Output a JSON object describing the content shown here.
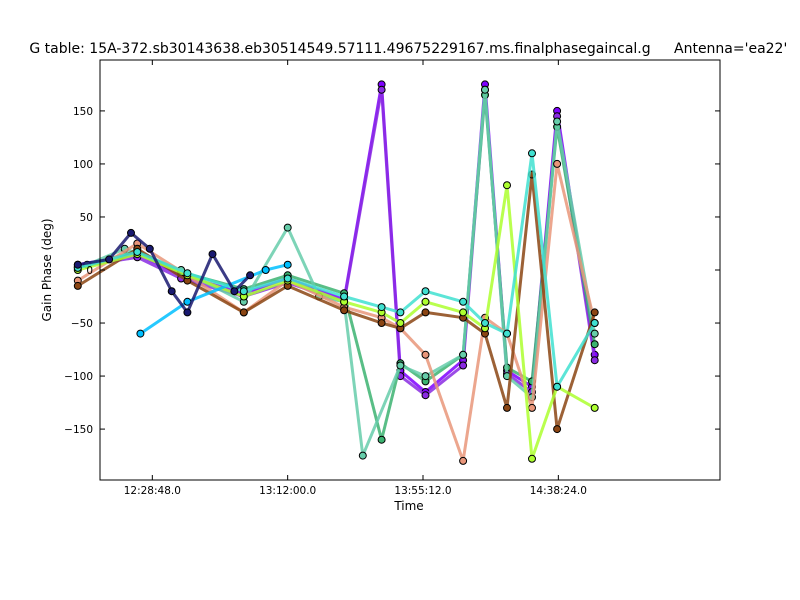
{
  "chart_data": {
    "type": "line",
    "title": "G table: 15A-372.sb30143638.eb30514549.57111.49675229167.ms.finalphasegaincal.g",
    "antenna_label": "Antenna='ea22'",
    "xlabel": "Time",
    "ylabel": "Gain Phase (deg)",
    "ylim": [
      -198,
      198
    ],
    "xlim_seconds": [
      43926,
      55800
    ],
    "x_ticks": [
      "12:28:48.0",
      "13:12:00.0",
      "13:55:12.0",
      "14:38:24.0"
    ],
    "y_ticks": [
      "150",
      "100",
      "50",
      "0",
      "−50",
      "−100",
      "−150"
    ],
    "grid": false,
    "legend": "none",
    "marker_edge_color": "#000000",
    "series": [
      {
        "color": "#7f00ff",
        "x": [
          "12:05:00",
          "12:24:00",
          "12:38:00",
          "12:58:00",
          "13:12:00",
          "13:30:00",
          "13:42:00",
          "13:48:00",
          "13:56:00",
          "14:08:00",
          "14:15:00",
          "14:22:00",
          "14:30:00",
          "14:38:00",
          "14:50:00"
        ],
        "y": [
          5,
          15,
          -5,
          -22,
          -8,
          -28,
          175,
          -95,
          -115,
          -85,
          175,
          -95,
          -110,
          150,
          -80
        ]
      },
      {
        "color": "#8a2be2",
        "x": [
          "12:05:00",
          "12:24:00",
          "12:38:00",
          "12:58:00",
          "13:12:00",
          "13:30:00",
          "13:42:00",
          "13:48:00",
          "13:56:00",
          "14:08:00",
          "14:15:00",
          "14:22:00",
          "14:30:00",
          "14:38:00",
          "14:50:00"
        ],
        "y": [
          3,
          12,
          -8,
          -25,
          -12,
          -30,
          170,
          -100,
          -118,
          -90,
          170,
          -98,
          -115,
          145,
          -85
        ]
      },
      {
        "color": "#3cb371",
        "x": [
          "12:05:00",
          "12:24:00",
          "12:38:00",
          "12:58:00",
          "13:12:00",
          "13:30:00",
          "13:42:00",
          "13:48:00",
          "13:56:00",
          "14:08:00",
          "14:15:00",
          "14:22:00",
          "14:30:00",
          "14:38:00",
          "14:50:00"
        ],
        "y": [
          2,
          18,
          -2,
          -18,
          -5,
          -22,
          -160,
          -88,
          -105,
          -80,
          165,
          -92,
          -105,
          135,
          -70
        ]
      },
      {
        "color": "#66cdaa",
        "x": [
          "12:08:00",
          "12:20:00",
          "12:38:00",
          "12:58:00",
          "13:12:00",
          "13:22:00",
          "13:30:00",
          "13:36:00",
          "13:48:00",
          "13:56:00",
          "14:08:00",
          "14:15:00",
          "14:22:00",
          "14:30:00",
          "14:38:00",
          "14:50:00"
        ],
        "y": [
          5,
          20,
          0,
          -30,
          40,
          -25,
          -30,
          -175,
          -90,
          -100,
          -80,
          170,
          -100,
          -120,
          140,
          -60
        ]
      },
      {
        "color": "#e9967a",
        "x": [
          "12:05:00",
          "12:24:00",
          "12:40:00",
          "12:58:00",
          "13:12:00",
          "13:30:00",
          "13:42:00",
          "13:48:00",
          "13:56:00",
          "14:08:00",
          "14:15:00",
          "14:22:00",
          "14:30:00",
          "14:38:00",
          "14:50:00"
        ],
        "y": [
          -10,
          25,
          -5,
          -40,
          -10,
          -35,
          -45,
          -55,
          -80,
          -180,
          -45,
          -60,
          -130,
          100,
          -50
        ]
      },
      {
        "color": "#8b4513",
        "x": [
          "12:05:00",
          "12:24:00",
          "12:40:00",
          "12:58:00",
          "13:12:00",
          "13:30:00",
          "13:42:00",
          "13:48:00",
          "13:56:00",
          "14:08:00",
          "14:15:00",
          "14:22:00",
          "14:30:00",
          "14:38:00",
          "14:50:00"
        ],
        "y": [
          -15,
          20,
          -10,
          -40,
          -15,
          -38,
          -50,
          -55,
          -40,
          -45,
          -60,
          -130,
          90,
          -150,
          -40
        ]
      },
      {
        "color": "#adff2f",
        "x": [
          "12:05:00",
          "12:24:00",
          "12:40:00",
          "12:58:00",
          "13:12:00",
          "13:30:00",
          "13:42:00",
          "13:48:00",
          "13:56:00",
          "14:08:00",
          "14:15:00",
          "14:22:00",
          "14:30:00",
          "14:38:00",
          "14:50:00"
        ],
        "y": [
          0,
          15,
          -5,
          -25,
          -10,
          -30,
          -40,
          -50,
          -30,
          -40,
          -55,
          80,
          -178,
          -110,
          -130
        ]
      },
      {
        "color": "#00bfff",
        "x": [
          "12:25:00",
          "12:40:00",
          "13:05:00",
          "13:12:00"
        ],
        "y": [
          -60,
          -30,
          0,
          5
        ]
      },
      {
        "color": "#40e0d0",
        "x": [
          "12:05:00",
          "12:24:00",
          "12:40:00",
          "12:58:00",
          "13:12:00",
          "13:30:00",
          "13:42:00",
          "13:48:00",
          "13:56:00",
          "14:08:00",
          "14:15:00",
          "14:22:00",
          "14:30:00",
          "14:38:00",
          "14:50:00"
        ],
        "y": [
          2,
          17,
          -3,
          -20,
          -8,
          -25,
          -35,
          -40,
          -20,
          -30,
          -50,
          -60,
          110,
          -110,
          -50
        ]
      },
      {
        "color": "#191970",
        "x": [
          "12:05:00",
          "12:15:00",
          "12:22:00",
          "12:28:00",
          "12:35:00",
          "12:40:00",
          "12:48:00",
          "12:55:00",
          "13:00:00"
        ],
        "y": [
          5,
          10,
          35,
          20,
          -20,
          -40,
          15,
          -20,
          -5
        ]
      }
    ]
  }
}
